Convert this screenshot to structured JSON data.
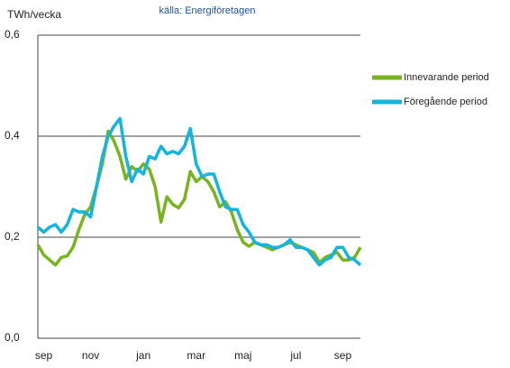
{
  "chart_data": {
    "type": "line",
    "title": "källa: Energiföretagen",
    "y_label": "TWh/vecka",
    "categories": [
      null,
      "sep",
      null,
      null,
      null,
      null,
      null,
      null,
      null,
      "nov",
      null,
      null,
      null,
      null,
      null,
      null,
      null,
      null,
      "jan",
      null,
      null,
      null,
      null,
      null,
      null,
      null,
      null,
      "mar",
      null,
      null,
      null,
      null,
      null,
      null,
      null,
      "maj",
      null,
      null,
      null,
      null,
      null,
      null,
      null,
      null,
      "jul",
      null,
      null,
      null,
      null,
      null,
      null,
      null,
      "sep",
      null,
      null,
      null
    ],
    "series": [
      {
        "name": "Innevarande period",
        "color": "#77b41e",
        "values": [
          0.185,
          0.165,
          0.155,
          0.145,
          0.16,
          0.163,
          0.18,
          0.215,
          0.245,
          0.26,
          0.3,
          0.345,
          0.41,
          0.39,
          0.36,
          0.315,
          0.34,
          0.33,
          0.345,
          0.335,
          0.3,
          0.23,
          0.28,
          0.265,
          0.258,
          0.275,
          0.33,
          0.31,
          0.32,
          0.31,
          0.29,
          0.26,
          0.27,
          0.25,
          0.215,
          0.19,
          0.182,
          0.19,
          0.185,
          0.18,
          0.175,
          0.18,
          0.185,
          0.19,
          0.185,
          0.18,
          0.175,
          0.17,
          0.15,
          0.16,
          0.165,
          0.17,
          0.155,
          0.155,
          0.16,
          0.18
        ]
      },
      {
        "name": "Föregående period",
        "color": "#12b4e0",
        "values": [
          0.22,
          0.21,
          0.22,
          0.225,
          0.21,
          0.225,
          0.255,
          0.25,
          0.25,
          0.24,
          0.3,
          0.36,
          0.4,
          0.42,
          0.435,
          0.36,
          0.31,
          0.335,
          0.325,
          0.36,
          0.355,
          0.38,
          0.365,
          0.37,
          0.365,
          0.38,
          0.415,
          0.345,
          0.32,
          0.325,
          0.325,
          0.29,
          0.26,
          0.255,
          0.255,
          0.225,
          0.21,
          0.19,
          0.185,
          0.185,
          0.18,
          0.18,
          0.185,
          0.195,
          0.18,
          0.18,
          0.175,
          0.16,
          0.145,
          0.155,
          0.16,
          0.18,
          0.18,
          0.16,
          0.155,
          0.145
        ]
      }
    ],
    "ylim": [
      0,
      0.6
    ],
    "yticks": [
      {
        "value": 0,
        "label": "0,0"
      },
      {
        "value": 0.2,
        "label": "0,2"
      },
      {
        "value": 0.4,
        "label": "0,4"
      },
      {
        "value": 0.6,
        "label": "0,6"
      }
    ],
    "grid": true
  }
}
